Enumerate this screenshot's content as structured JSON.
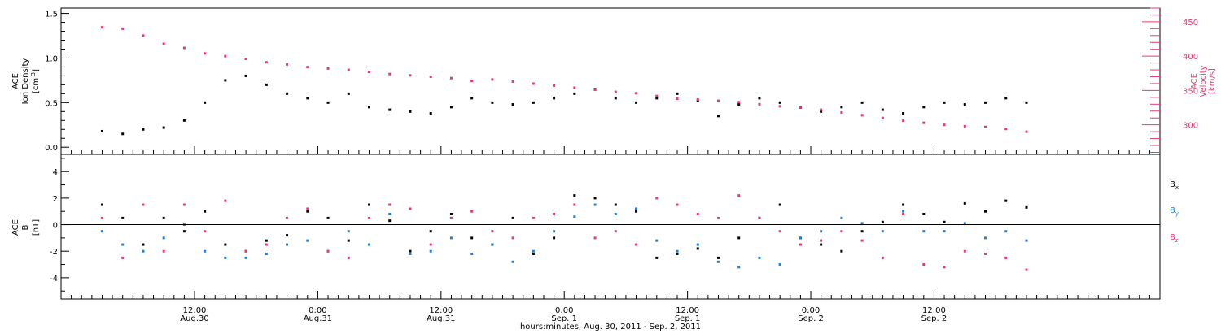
{
  "chart_data": [
    {
      "type": "scatter",
      "panel": "top",
      "ylabel_lines": [
        "ACE",
        "Ion Density"
      ],
      "yunit_base": "[cm",
      "yunit_sup": "-3",
      "yunit_end": "]",
      "ylim": [
        -0.08,
        1.56
      ],
      "yticks": [
        0.0,
        0.5,
        1.0,
        1.5
      ],
      "ytick_labels": [
        "0.0",
        "0.5",
        "1.0",
        "1.5"
      ],
      "y2label_lines": [
        "ACE",
        "Velocity",
        "[km/s]"
      ],
      "y2lim": [
        257,
        470
      ],
      "y2ticks": [
        300,
        350,
        400,
        450
      ],
      "y2tick_labels": [
        "300",
        "350",
        "400",
        "450"
      ],
      "series": [
        {
          "name": "Ion Density",
          "color": "#000000",
          "axis": "left",
          "x": [
            0,
            2,
            4,
            6,
            8,
            10,
            12,
            14,
            16,
            18,
            20,
            22,
            24,
            26,
            28,
            30,
            32,
            34,
            36,
            38,
            40,
            42,
            44,
            46,
            48,
            50,
            52,
            54,
            56,
            58,
            60,
            62,
            64,
            66,
            68,
            70,
            72,
            74,
            76,
            78,
            80,
            82,
            84,
            86,
            88,
            90
          ],
          "values": [
            0.18,
            0.15,
            0.2,
            0.22,
            0.3,
            0.5,
            0.75,
            0.8,
            0.7,
            0.6,
            0.55,
            0.5,
            0.6,
            0.45,
            0.42,
            0.4,
            0.38,
            0.45,
            0.55,
            0.5,
            0.48,
            0.5,
            0.55,
            0.6,
            0.65,
            0.55,
            0.5,
            0.55,
            0.6,
            0.52,
            0.35,
            0.48,
            0.55,
            0.5,
            0.45,
            0.4,
            0.45,
            0.5,
            0.42,
            0.38,
            0.45,
            0.5,
            0.48,
            0.5,
            0.55,
            0.5
          ]
        },
        {
          "name": "Velocity",
          "color": "#e63a6e",
          "axis": "right",
          "x": [
            0,
            2,
            4,
            6,
            8,
            10,
            12,
            14,
            16,
            18,
            20,
            22,
            24,
            26,
            28,
            30,
            32,
            34,
            36,
            38,
            40,
            42,
            44,
            46,
            48,
            50,
            52,
            54,
            56,
            58,
            60,
            62,
            64,
            66,
            68,
            70,
            72,
            74,
            76,
            78,
            80,
            82,
            84,
            86,
            88,
            90
          ],
          "values": [
            442,
            440,
            430,
            418,
            412,
            404,
            400,
            396,
            391,
            388,
            384,
            382,
            380,
            377,
            374,
            372,
            370,
            368,
            364,
            366,
            363,
            360,
            357,
            354,
            351,
            348,
            346,
            342,
            338,
            337,
            335,
            333,
            330,
            327,
            325,
            322,
            318,
            314,
            310,
            306,
            303,
            300,
            298,
            297,
            294,
            290
          ]
        }
      ]
    },
    {
      "type": "scatter",
      "panel": "bottom",
      "ylabel_lines": [
        "ACE",
        "B"
      ],
      "yunit": "[nT]",
      "ylim": [
        -5.6,
        5.3
      ],
      "yticks": [
        -4,
        -2,
        0,
        2,
        4
      ],
      "ytick_labels": [
        "-4",
        "-2",
        "0",
        "2",
        "4"
      ],
      "series": [
        {
          "name": "B",
          "sub": "x",
          "color": "#000000",
          "x": [
            0,
            2,
            4,
            6,
            8,
            10,
            12,
            14,
            16,
            18,
            20,
            22,
            24,
            26,
            28,
            30,
            32,
            34,
            36,
            38,
            40,
            42,
            44,
            46,
            48,
            50,
            52,
            54,
            56,
            58,
            60,
            62,
            64,
            66,
            68,
            70,
            72,
            74,
            76,
            78,
            80,
            82,
            84,
            86,
            88,
            90
          ],
          "values": [
            1.5,
            0.5,
            -1.5,
            0.5,
            -0.5,
            1,
            -1.5,
            -2,
            -1.2,
            -0.8,
            1,
            0.5,
            -1.2,
            1.5,
            0.3,
            -2,
            -0.5,
            0.8,
            -1,
            -1.5,
            0.5,
            -2.2,
            -1,
            2.2,
            2,
            1.5,
            1,
            -2.5,
            -2.2,
            -1.8,
            -2.5,
            -1,
            0.5,
            1.5,
            -1,
            -1.5,
            -2,
            -0.5,
            0.2,
            1.5,
            0.8,
            0.2,
            1.6,
            1,
            1.8,
            1.3
          ]
        },
        {
          "name": "B",
          "sub": "y",
          "color": "#1f7ed6",
          "x": [
            0,
            2,
            4,
            6,
            8,
            10,
            12,
            14,
            16,
            18,
            20,
            22,
            24,
            26,
            28,
            30,
            32,
            34,
            36,
            38,
            40,
            42,
            44,
            46,
            48,
            50,
            52,
            54,
            56,
            58,
            60,
            62,
            64,
            66,
            68,
            70,
            72,
            74,
            76,
            78,
            80,
            82,
            84,
            86,
            88,
            90
          ],
          "values": [
            -0.5,
            -1.5,
            -2,
            -1,
            0,
            -2,
            -2.5,
            -2.5,
            -2.2,
            -1.5,
            -1.2,
            -2,
            -0.5,
            -1.5,
            0.8,
            -2.2,
            -2,
            -1,
            -2.2,
            -1.5,
            -2.8,
            -2,
            -0.5,
            0.6,
            1.5,
            0.8,
            1.2,
            -1.2,
            -2,
            -1.5,
            -2.8,
            -3.2,
            -2.5,
            -3,
            -1,
            -0.5,
            0.5,
            0.1,
            -0.5,
            1,
            -0.5,
            -0.5,
            0.1,
            -1,
            -0.5,
            -1.2
          ]
        },
        {
          "name": "B",
          "sub": "z",
          "color": "#e63a6e",
          "x": [
            0,
            2,
            4,
            6,
            8,
            10,
            12,
            14,
            16,
            18,
            20,
            22,
            24,
            26,
            28,
            30,
            32,
            34,
            36,
            38,
            40,
            42,
            44,
            46,
            48,
            50,
            52,
            54,
            56,
            58,
            60,
            62,
            64,
            66,
            68,
            70,
            72,
            74,
            76,
            78,
            80,
            82,
            84,
            86,
            88,
            90
          ],
          "values": [
            0.5,
            -2.5,
            1.5,
            -2,
            1.5,
            -0.5,
            1.8,
            -2,
            -1.5,
            0.5,
            1.2,
            -2,
            -2.5,
            0.5,
            1.5,
            1.2,
            -1.5,
            0.5,
            1,
            -0.5,
            -1,
            0.5,
            0.8,
            1.5,
            -1,
            -0.5,
            -1.5,
            2,
            1.5,
            0.8,
            0.5,
            2.2,
            0.5,
            -0.5,
            -1.5,
            -1.2,
            -0.5,
            -1.2,
            -2.5,
            0.8,
            -3,
            -3.2,
            -2,
            -2.2,
            -2.5,
            -3.4
          ]
        }
      ]
    }
  ],
  "x_axis": {
    "xlim": [
      -4,
      103
    ],
    "ticks": [
      {
        "x": 9,
        "time": "12:00",
        "date": "Aug.30"
      },
      {
        "x": 21,
        "time": "0:00",
        "date": "Aug.31"
      },
      {
        "x": 33,
        "time": "12:00",
        "date": "Aug.31"
      },
      {
        "x": 45,
        "time": "0:00",
        "date": "Sep. 1"
      },
      {
        "x": 57,
        "time": "12:00",
        "date": "Sep. 1"
      },
      {
        "x": 69,
        "time": "0:00",
        "date": "Sep. 2"
      },
      {
        "x": 81,
        "time": "12:00",
        "date": "Sep. 2"
      }
    ],
    "label": "hours:minutes, Aug. 30, 2011 - Sep.  2, 2011"
  }
}
